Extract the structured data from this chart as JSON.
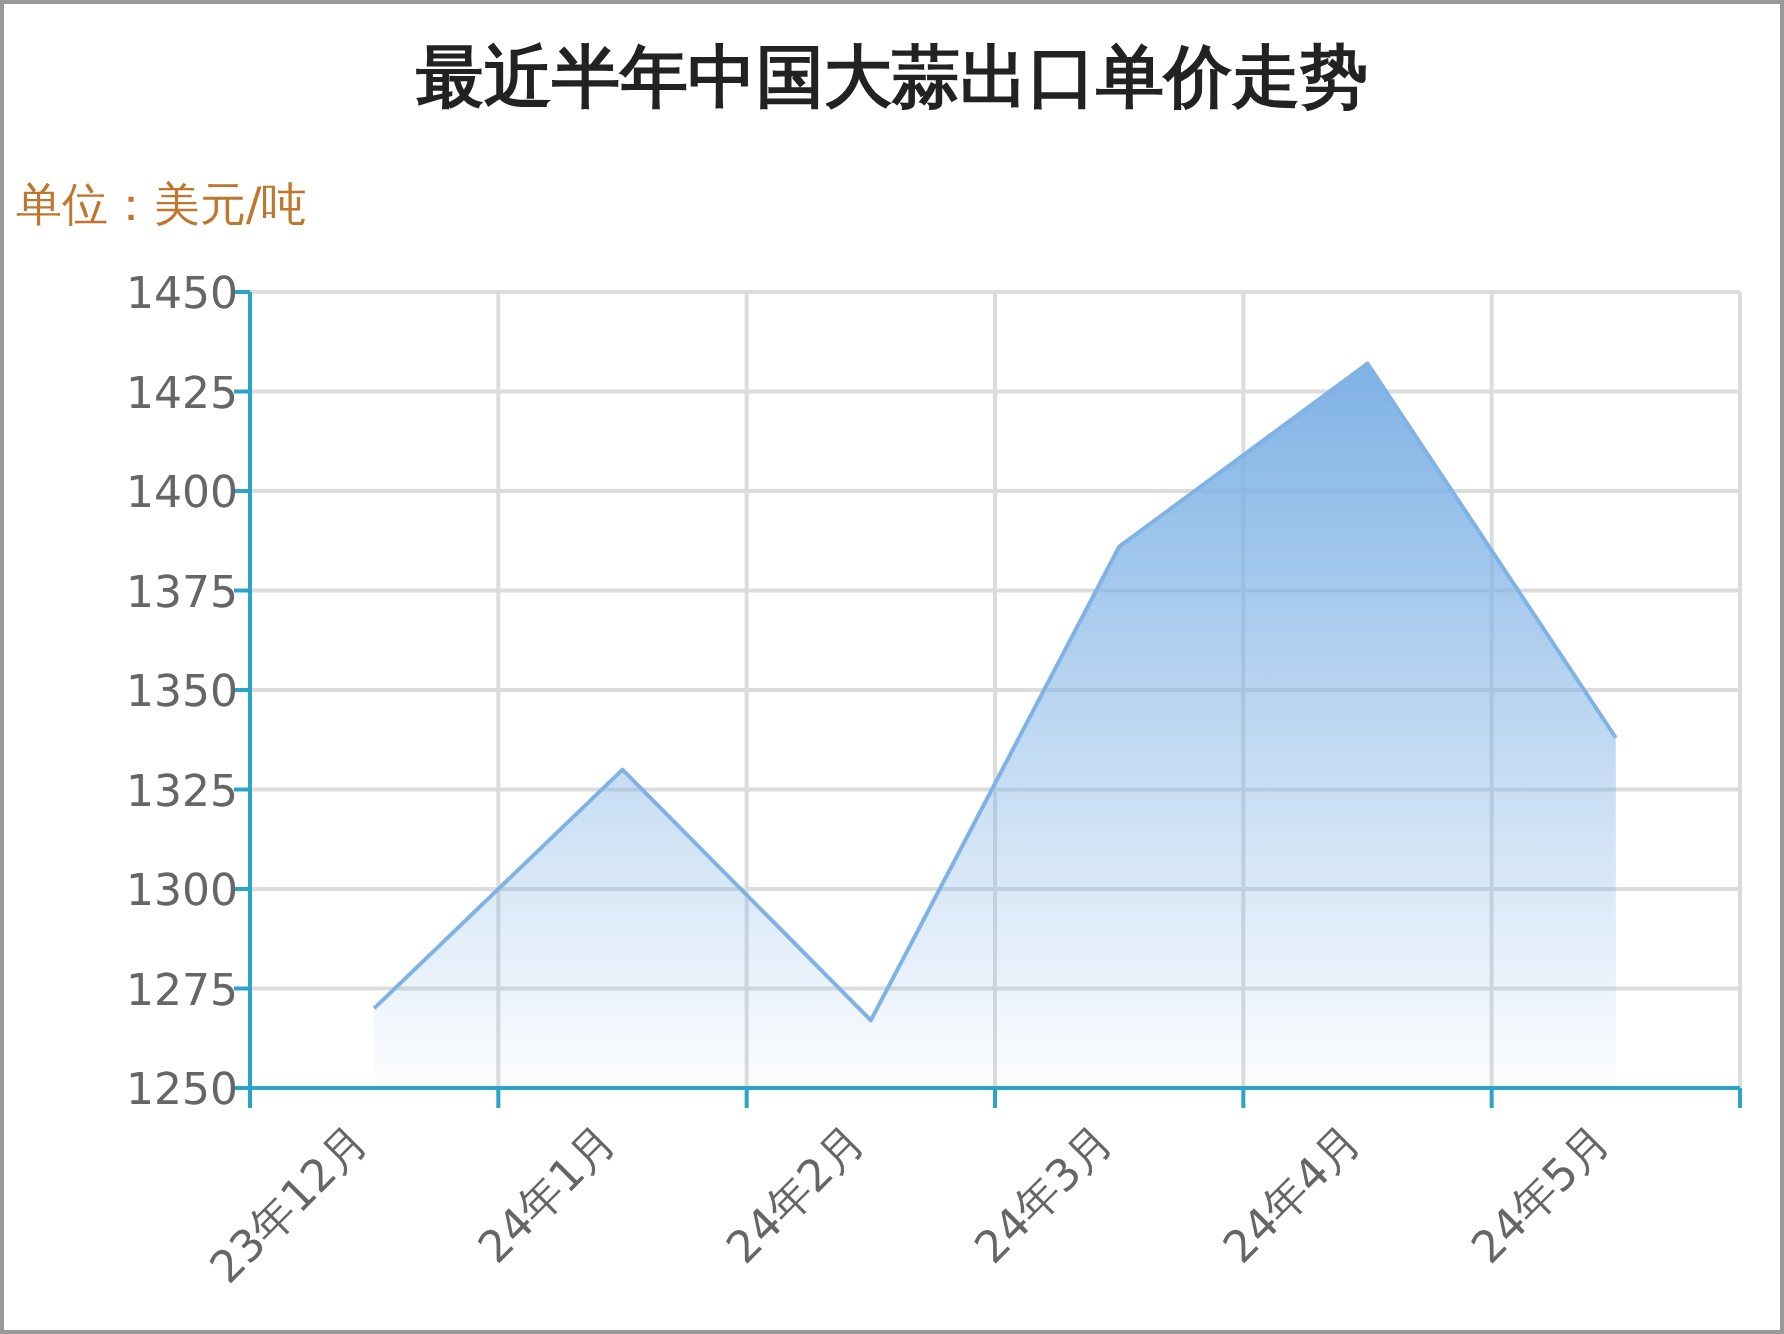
{
  "chart_data": {
    "type": "area",
    "title": "最近半年中国大蒜出口单价走势",
    "ylabel": "单位：美元/吨",
    "categories": [
      "23年12月",
      "24年1月",
      "24年2月",
      "24年3月",
      "24年4月",
      "24年5月"
    ],
    "values": [
      1270,
      1330,
      1267,
      1386,
      1432,
      1338
    ],
    "color": "#7fb2e5",
    "ylim": [
      1250,
      1450
    ],
    "yticks": [
      1250,
      1275,
      1300,
      1325,
      1350,
      1375,
      1400,
      1425,
      1450
    ],
    "grid": true
  }
}
